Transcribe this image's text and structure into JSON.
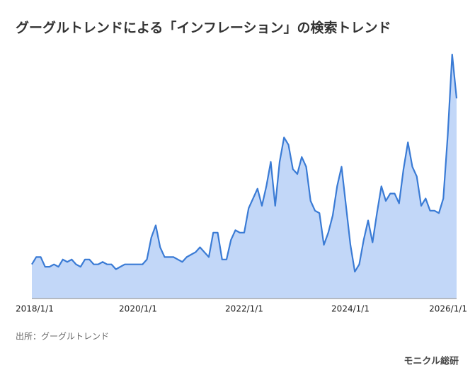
{
  "chart_data": {
    "type": "area",
    "title": "グーグルトレンドによる「インフレーション」の検索トレンド",
    "source": "出所：グーグルトレンド",
    "brand": "モニクル総研",
    "x": [
      "2018/1/1",
      "2018/2/1",
      "2018/3/1",
      "2018/4/1",
      "2018/5/1",
      "2018/6/1",
      "2018/7/1",
      "2018/8/1",
      "2018/9/1",
      "2018/10/1",
      "2018/11/1",
      "2018/12/1",
      "2019/1/1",
      "2019/2/1",
      "2019/3/1",
      "2019/4/1",
      "2019/5/1",
      "2019/6/1",
      "2019/7/1",
      "2019/8/1",
      "2019/9/1",
      "2019/10/1",
      "2019/11/1",
      "2019/12/1",
      "2020/1/1",
      "2020/2/1",
      "2020/3/1",
      "2020/4/1",
      "2020/5/1",
      "2020/6/1",
      "2020/7/1",
      "2020/8/1",
      "2020/9/1",
      "2020/10/1",
      "2020/11/1",
      "2020/12/1",
      "2021/1/1",
      "2021/2/1",
      "2021/3/1",
      "2021/4/1",
      "2021/5/1",
      "2021/6/1",
      "2021/7/1",
      "2021/8/1",
      "2021/9/1",
      "2021/10/1",
      "2021/11/1",
      "2021/12/1",
      "2022/1/1",
      "2022/2/1",
      "2022/3/1",
      "2022/4/1",
      "2022/5/1",
      "2022/6/1",
      "2022/7/1",
      "2022/8/1",
      "2022/9/1",
      "2022/10/1",
      "2022/11/1",
      "2022/12/1",
      "2023/1/1",
      "2023/2/1",
      "2023/3/1",
      "2023/4/1",
      "2023/5/1",
      "2023/6/1",
      "2023/7/1",
      "2023/8/1",
      "2023/9/1",
      "2023/10/1",
      "2023/11/1",
      "2023/12/1",
      "2024/1/1",
      "2024/2/1",
      "2024/3/1",
      "2024/4/1",
      "2024/5/1",
      "2024/6/1",
      "2024/7/1",
      "2024/8/1",
      "2024/9/1",
      "2024/10/1",
      "2024/11/1",
      "2024/12/1",
      "2025/1/1",
      "2025/2/1",
      "2025/3/1",
      "2025/4/1",
      "2025/5/1",
      "2025/6/1",
      "2025/7/1",
      "2025/8/1",
      "2025/9/1",
      "2025/10/1",
      "2025/11/1",
      "2025/12/1",
      "2026/1/1"
    ],
    "series": [
      {
        "name": "インフレーション",
        "color": "#3a7bd5",
        "fill": "#c2d7f8",
        "values": [
          14,
          17,
          17,
          13,
          13,
          14,
          13,
          16,
          15,
          16,
          14,
          13,
          16,
          16,
          14,
          14,
          15,
          14,
          14,
          12,
          13,
          14,
          14,
          14,
          14,
          14,
          16,
          25,
          30,
          21,
          17,
          17,
          17,
          16,
          15,
          17,
          18,
          19,
          21,
          19,
          17,
          27,
          27,
          16,
          16,
          24,
          28,
          27,
          27,
          37,
          41,
          45,
          38,
          46,
          56,
          38,
          56,
          66,
          63,
          53,
          51,
          58,
          54,
          40,
          36,
          35,
          22,
          27,
          34,
          46,
          54,
          38,
          22,
          11,
          14,
          24,
          32,
          23,
          35,
          46,
          40,
          43,
          43,
          39,
          53,
          64,
          54,
          50,
          38,
          41,
          36,
          36,
          35,
          41,
          67,
          100,
          82
        ]
      }
    ],
    "xlim": [
      "2018/1/1",
      "2026/1/1"
    ],
    "xticks": [
      "2018/1/1",
      "2020/1/1",
      "2022/1/1",
      "2024/1/1",
      "2026/1/1"
    ],
    "ylim": [
      0,
      100
    ]
  }
}
